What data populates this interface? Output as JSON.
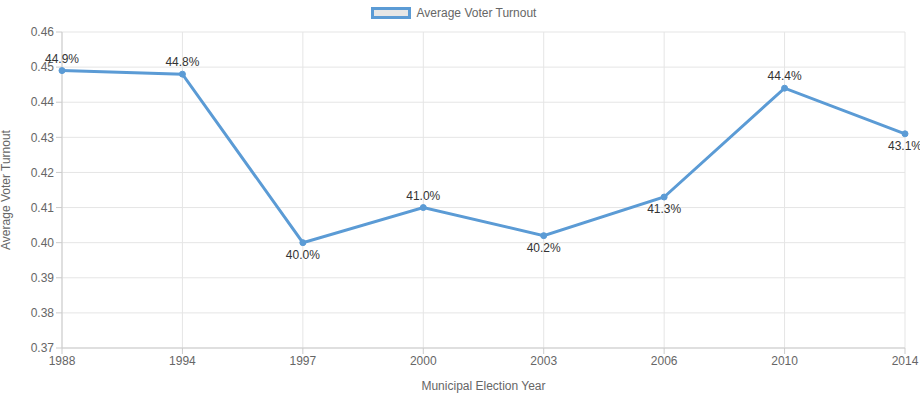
{
  "chart_data": {
    "type": "line",
    "x_label": "Municipal Election Year",
    "y_label": "Average Voter Turnout",
    "categories": [
      "1988",
      "1994",
      "1997",
      "2000",
      "2003",
      "2006",
      "2010",
      "2014"
    ],
    "series": [
      {
        "name": "Average Voter Turnout",
        "color": "#5b9bd5",
        "marker": "circle",
        "line_style": "solid",
        "values": [
          0.449,
          0.448,
          0.4,
          0.41,
          0.402,
          0.413,
          0.444,
          0.431
        ],
        "value_labels": [
          "44.9%",
          "44.8%",
          "40.0%",
          "41.0%",
          "40.2%",
          "41.3%",
          "44.4%",
          "43.1%"
        ]
      }
    ],
    "ylim": [
      0.37,
      0.46
    ],
    "yticks": [
      0.37,
      0.38,
      0.39,
      {
        "value": 0.4,
        "label": "0.40"
      },
      0.41,
      0.42,
      0.43,
      0.44,
      0.45,
      0.46
    ],
    "grid": true,
    "legend": "top",
    "data_labels": true
  }
}
